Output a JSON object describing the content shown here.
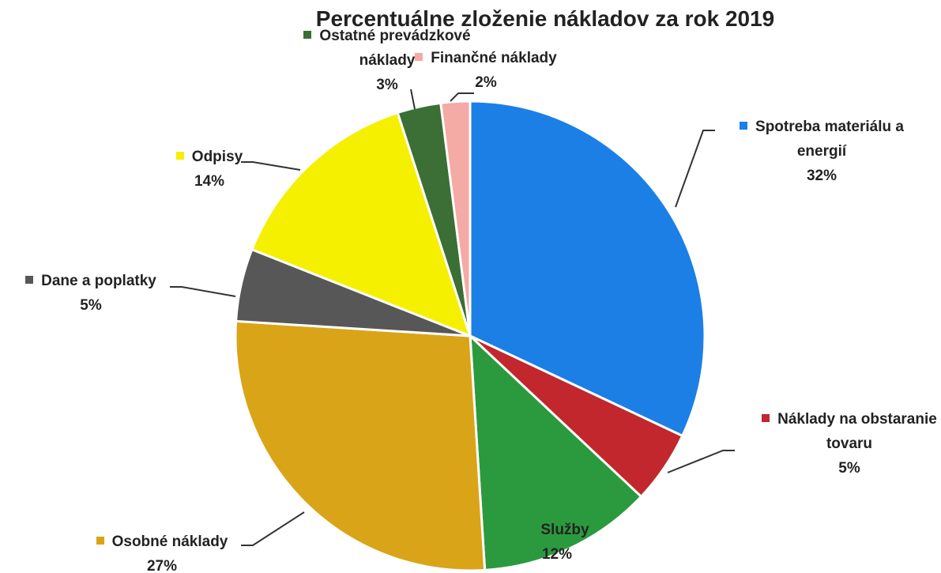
{
  "chart_data": {
    "type": "pie",
    "title": "Percentuálne zloženie nákladov za rok 2019",
    "categories": [
      "Spotreba materiálu a energií",
      "Náklady na obstaranie tovaru",
      "Služby",
      "Osobné náklady",
      "Dane a poplatky",
      "Odpisy",
      "Ostatné prevádzkové náklady",
      "Finančné náklady"
    ],
    "values": [
      32,
      5,
      12,
      27,
      5,
      14,
      3,
      2
    ],
    "value_labels": [
      "32%",
      "5%",
      "12%",
      "27%",
      "5%",
      "14%",
      "3%",
      "2%"
    ],
    "colors": [
      "#1b7fe6",
      "#c1272d",
      "#2b9a3e",
      "#d9a417",
      "#575757",
      "#f5ef00",
      "#3b6f36",
      "#f4aaa5"
    ]
  }
}
